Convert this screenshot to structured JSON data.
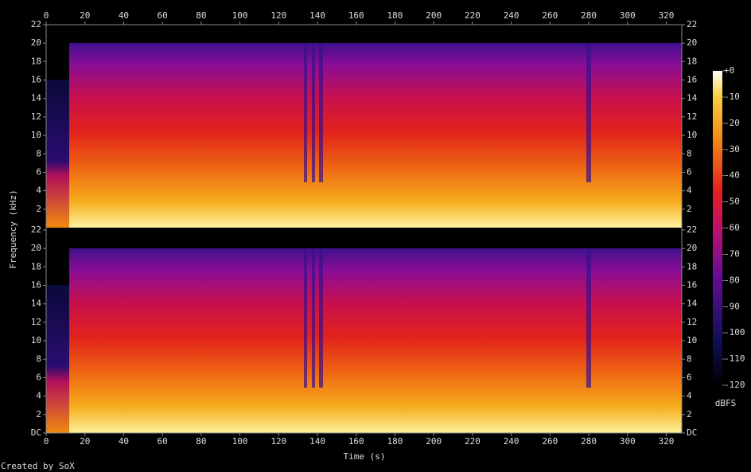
{
  "chart_data": {
    "type": "spectrogram",
    "xlabel": "Time (s)",
    "ylabel": "Frequency (kHz)",
    "xlim": [
      0,
      328
    ],
    "xticks": [
      0,
      20,
      40,
      60,
      80,
      100,
      120,
      140,
      160,
      180,
      200,
      220,
      240,
      260,
      280,
      300,
      320
    ],
    "channels": [
      {
        "ylim": [
          0,
          22
        ],
        "yticks": [
          2,
          4,
          6,
          8,
          10,
          12,
          14,
          16,
          18,
          20,
          22
        ]
      },
      {
        "ylim": [
          0,
          22
        ],
        "yticks": [
          {
            "value": 0,
            "label": "DC"
          },
          2,
          4,
          6,
          8,
          10,
          12,
          14,
          16,
          18,
          20,
          22
        ]
      }
    ],
    "colorbar": {
      "label": "dBFS",
      "lim": [
        -120,
        0
      ],
      "ticks": [
        {
          "value": 0,
          "label": "+0"
        },
        -10,
        -20,
        -30,
        -40,
        -50,
        -60,
        -70,
        -80,
        -90,
        -100,
        -110,
        -120
      ]
    },
    "credit": "Created by SoX"
  }
}
